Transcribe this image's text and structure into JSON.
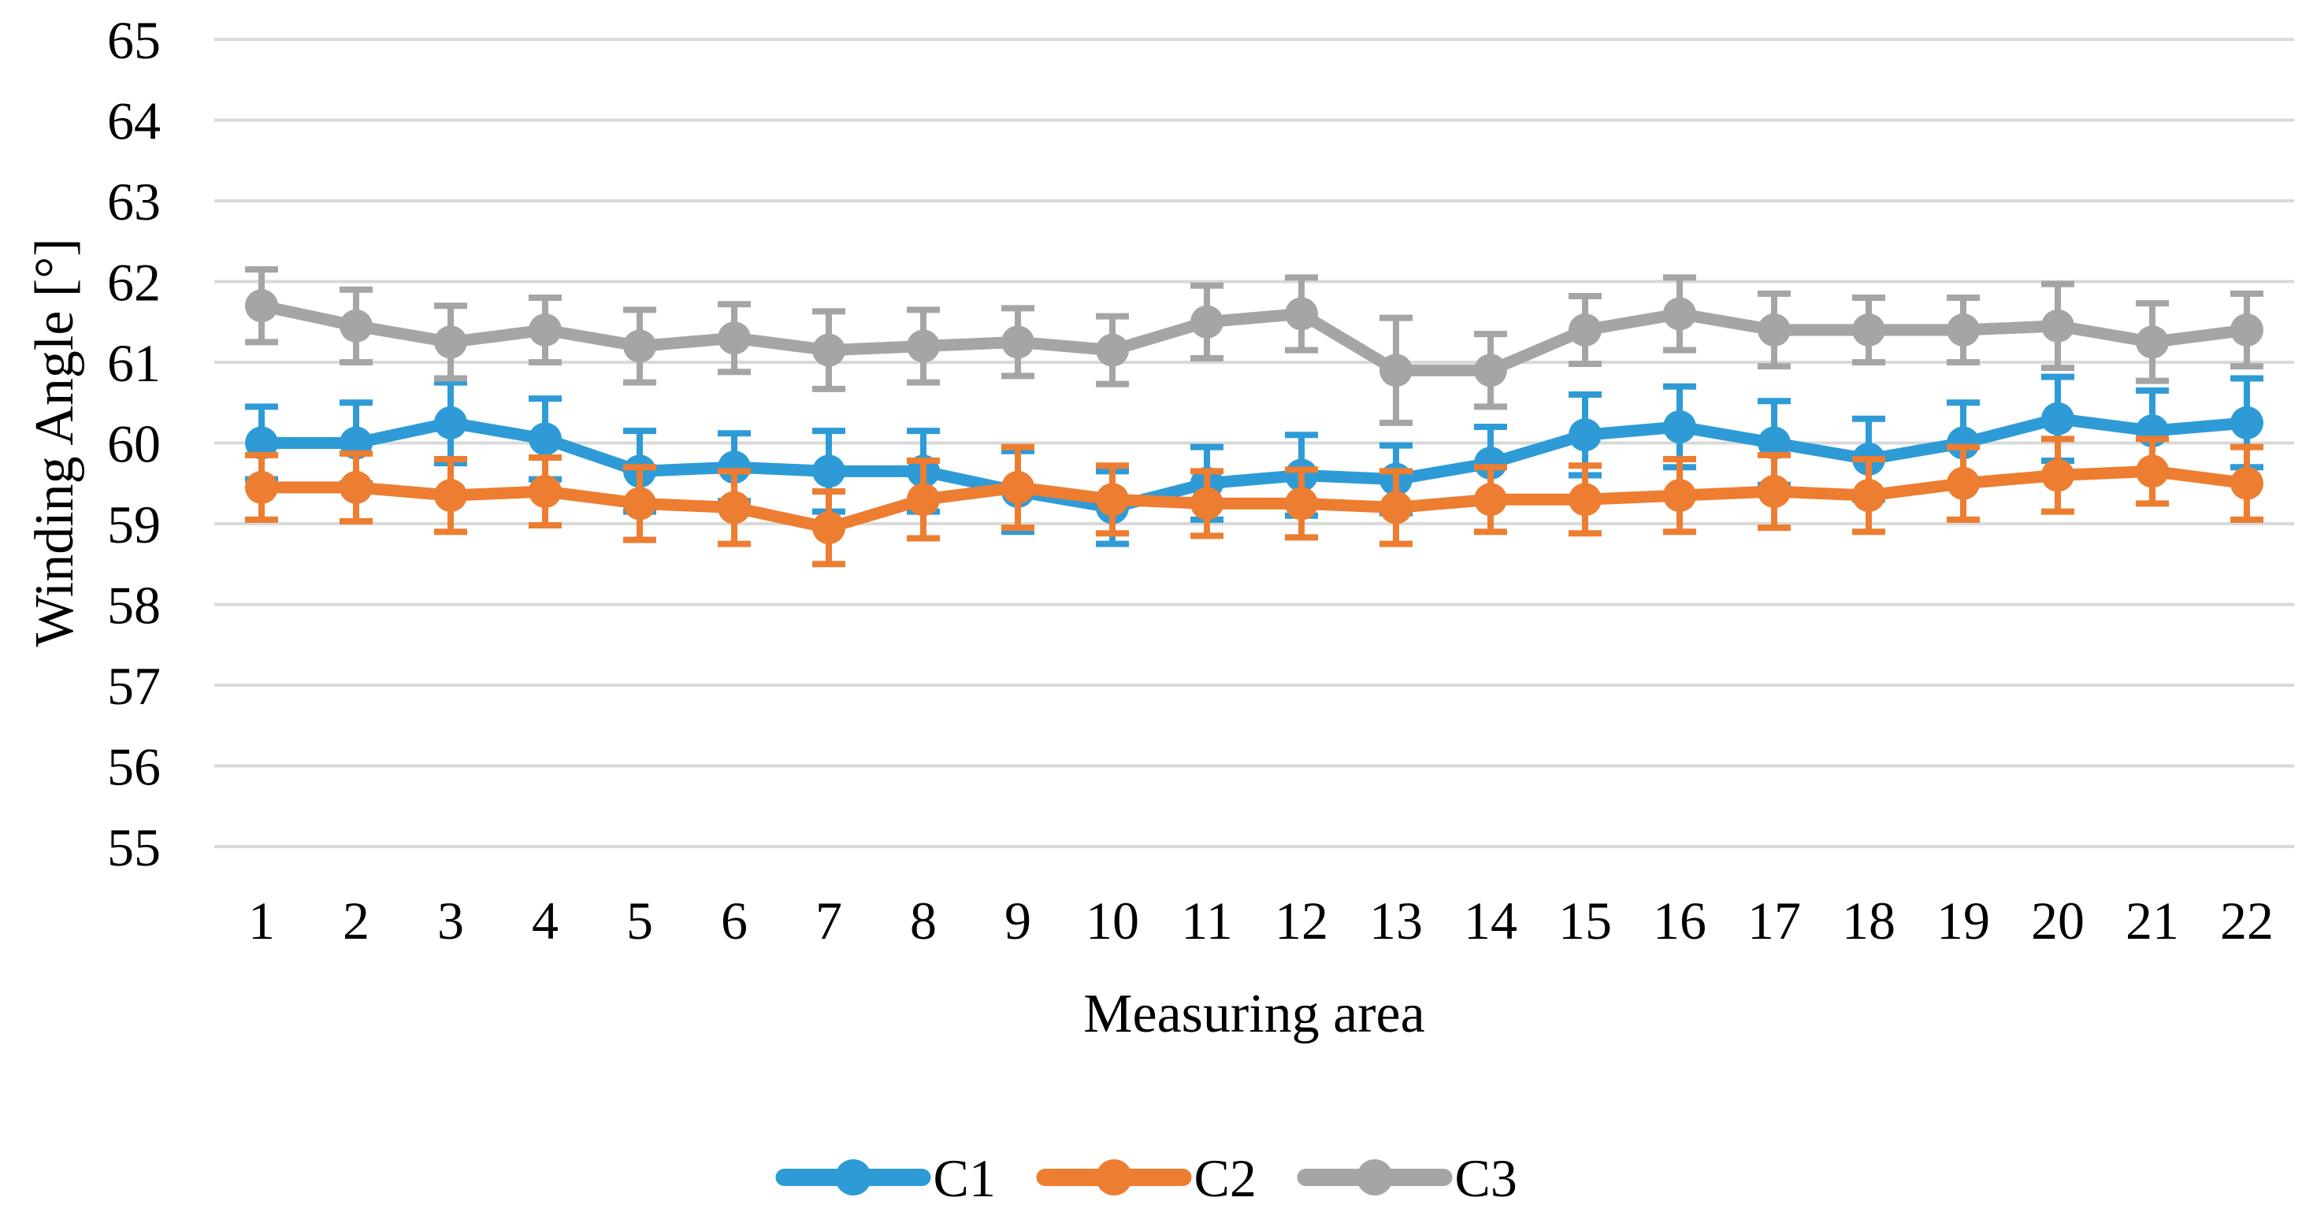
{
  "chart_data": {
    "type": "line",
    "title": "",
    "xlabel": "Measuring area",
    "ylabel": "Winding Angle [°]",
    "categories": [
      "1",
      "2",
      "3",
      "4",
      "5",
      "6",
      "7",
      "8",
      "9",
      "10",
      "11",
      "12",
      "13",
      "14",
      "15",
      "16",
      "17",
      "18",
      "19",
      "20",
      "21",
      "22"
    ],
    "ylim": [
      55,
      65
    ],
    "ytick_step": 1,
    "yticks": [
      55,
      56,
      57,
      58,
      59,
      60,
      61,
      62,
      63,
      64,
      65
    ],
    "grid": true,
    "legend_position": "bottom",
    "error_bars": "symmetric, value ± error per point",
    "series": [
      {
        "name": "C1",
        "color": "#2E9BD6",
        "values": [
          60.0,
          60.0,
          60.25,
          60.05,
          59.65,
          59.7,
          59.65,
          59.65,
          59.4,
          59.2,
          59.5,
          59.6,
          59.55,
          59.75,
          60.1,
          60.2,
          60.0,
          59.8,
          60.0,
          60.3,
          60.15,
          60.25
        ],
        "errors": [
          0.45,
          0.5,
          0.5,
          0.5,
          0.5,
          0.42,
          0.5,
          0.5,
          0.5,
          0.45,
          0.45,
          0.5,
          0.42,
          0.45,
          0.5,
          0.5,
          0.52,
          0.5,
          0.5,
          0.52,
          0.5,
          0.55
        ]
      },
      {
        "name": "C2",
        "color": "#ED7D31",
        "values": [
          59.45,
          59.45,
          59.35,
          59.4,
          59.25,
          59.2,
          58.95,
          59.3,
          59.45,
          59.3,
          59.25,
          59.25,
          59.2,
          59.3,
          59.3,
          59.35,
          59.4,
          59.35,
          59.5,
          59.6,
          59.65,
          59.5
        ],
        "errors": [
          0.4,
          0.42,
          0.45,
          0.42,
          0.45,
          0.45,
          0.45,
          0.48,
          0.5,
          0.42,
          0.4,
          0.42,
          0.45,
          0.4,
          0.42,
          0.45,
          0.45,
          0.45,
          0.45,
          0.45,
          0.4,
          0.45
        ]
      },
      {
        "name": "C3",
        "color": "#A5A5A5",
        "values": [
          61.7,
          61.45,
          61.25,
          61.4,
          61.2,
          61.3,
          61.15,
          61.2,
          61.25,
          61.15,
          61.5,
          61.6,
          60.9,
          60.9,
          61.4,
          61.6,
          61.4,
          61.4,
          61.4,
          61.45,
          61.25,
          61.4
        ],
        "errors": [
          0.45,
          0.45,
          0.45,
          0.4,
          0.45,
          0.42,
          0.48,
          0.45,
          0.42,
          0.42,
          0.45,
          0.45,
          0.65,
          0.45,
          0.42,
          0.45,
          0.45,
          0.4,
          0.4,
          0.52,
          0.48,
          0.45
        ]
      }
    ]
  },
  "style": {
    "background_color": "#FFFFFF",
    "gridline_color": "#D9D9D9",
    "text_color": "#000000"
  }
}
